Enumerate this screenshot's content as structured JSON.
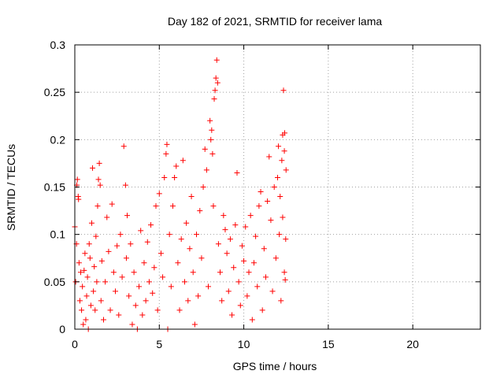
{
  "chart_data": {
    "type": "scatter",
    "title": "Day 182 of 2021, SRMTID for receiver lama",
    "xlabel": "GPS time / hours",
    "ylabel": "SRMTID / TECUs",
    "xlim": [
      0,
      24
    ],
    "ylim": [
      0,
      0.3
    ],
    "xticks": [
      0,
      5,
      10,
      15,
      20
    ],
    "xtick_labels": [
      "0",
      "5",
      "10",
      "15",
      "20"
    ],
    "yticks": [
      0,
      0.05,
      0.1,
      0.15,
      0.2,
      0.25,
      0.3
    ],
    "ytick_labels": [
      "0",
      "0.05",
      "0.1",
      "0.15",
      "0.2",
      "0.25",
      "0.3"
    ],
    "grid": true,
    "marker": "plus",
    "series": [
      {
        "name": "SRMTID",
        "color": "#ff0000",
        "points": [
          [
            0.0,
            0.108
          ],
          [
            0.05,
            0.05
          ],
          [
            0.1,
            0.09
          ],
          [
            0.12,
            0.152
          ],
          [
            0.15,
            0.158
          ],
          [
            0.2,
            0.14
          ],
          [
            0.22,
            0.137
          ],
          [
            0.25,
            0.07
          ],
          [
            0.3,
            0.03
          ],
          [
            0.35,
            0.06
          ],
          [
            0.4,
            0.02
          ],
          [
            0.45,
            0.045
          ],
          [
            0.5,
            0.005
          ],
          [
            0.55,
            0.062
          ],
          [
            0.6,
            0.08
          ],
          [
            0.65,
            0.01
          ],
          [
            0.7,
            0.035
          ],
          [
            0.75,
            0.055
          ],
          [
            0.8,
            0.0
          ],
          [
            0.85,
            0.09
          ],
          [
            0.9,
            0.075
          ],
          [
            0.95,
            0.025
          ],
          [
            1.0,
            0.112
          ],
          [
            1.05,
            0.17
          ],
          [
            1.1,
            0.04
          ],
          [
            1.15,
            0.066
          ],
          [
            1.2,
            0.02
          ],
          [
            1.25,
            0.098
          ],
          [
            1.3,
            0.05
          ],
          [
            1.35,
            0.13
          ],
          [
            1.4,
            0.158
          ],
          [
            1.45,
            0.175
          ],
          [
            1.5,
            0.152
          ],
          [
            1.55,
            0.03
          ],
          [
            1.6,
            0.072
          ],
          [
            1.7,
            0.01
          ],
          [
            1.8,
            0.05
          ],
          [
            1.9,
            0.118
          ],
          [
            2.0,
            0.082
          ],
          [
            2.1,
            0.02
          ],
          [
            2.2,
            0.132
          ],
          [
            2.3,
            0.06
          ],
          [
            2.4,
            0.04
          ],
          [
            2.5,
            0.088
          ],
          [
            2.6,
            0.015
          ],
          [
            2.7,
            0.1
          ],
          [
            2.8,
            0.055
          ],
          [
            2.9,
            0.193
          ],
          [
            3.0,
            0.152
          ],
          [
            3.05,
            0.075
          ],
          [
            3.1,
            0.12
          ],
          [
            3.2,
            0.035
          ],
          [
            3.3,
            0.09
          ],
          [
            3.4,
            0.005
          ],
          [
            3.5,
            0.06
          ],
          [
            3.6,
            0.025
          ],
          [
            3.7,
            0.0
          ],
          [
            3.8,
            0.045
          ],
          [
            3.9,
            0.104
          ],
          [
            4.0,
            0.015
          ],
          [
            4.1,
            0.07
          ],
          [
            4.2,
            0.03
          ],
          [
            4.3,
            0.092
          ],
          [
            4.4,
            0.05
          ],
          [
            4.5,
            0.11
          ],
          [
            4.6,
            0.038
          ],
          [
            4.7,
            0.065
          ],
          [
            4.8,
            0.13
          ],
          [
            4.9,
            0.02
          ],
          [
            5.0,
            0.143
          ],
          [
            5.1,
            0.08
          ],
          [
            5.2,
            0.055
          ],
          [
            5.3,
            0.16
          ],
          [
            5.4,
            0.185
          ],
          [
            5.45,
            0.195
          ],
          [
            5.5,
            0.0
          ],
          [
            5.6,
            0.1
          ],
          [
            5.7,
            0.045
          ],
          [
            5.8,
            0.13
          ],
          [
            5.9,
            0.16
          ],
          [
            6.0,
            0.172
          ],
          [
            6.1,
            0.07
          ],
          [
            6.2,
            0.02
          ],
          [
            6.3,
            0.095
          ],
          [
            6.4,
            0.178
          ],
          [
            6.5,
            0.05
          ],
          [
            6.6,
            0.112
          ],
          [
            6.7,
            0.03
          ],
          [
            6.8,
            0.085
          ],
          [
            6.9,
            0.14
          ],
          [
            7.0,
            0.06
          ],
          [
            7.1,
            0.005
          ],
          [
            7.2,
            0.1
          ],
          [
            7.3,
            0.035
          ],
          [
            7.4,
            0.125
          ],
          [
            7.5,
            0.075
          ],
          [
            7.6,
            0.15
          ],
          [
            7.7,
            0.19
          ],
          [
            7.8,
            0.168
          ],
          [
            7.9,
            0.045
          ],
          [
            8.0,
            0.22
          ],
          [
            8.05,
            0.2
          ],
          [
            8.1,
            0.21
          ],
          [
            8.15,
            0.185
          ],
          [
            8.2,
            0.13
          ],
          [
            8.25,
            0.243
          ],
          [
            8.3,
            0.252
          ],
          [
            8.35,
            0.265
          ],
          [
            8.4,
            0.284
          ],
          [
            8.45,
            0.26
          ],
          [
            8.5,
            0.09
          ],
          [
            8.6,
            0.06
          ],
          [
            8.7,
            0.03
          ],
          [
            8.8,
            0.12
          ],
          [
            8.9,
            0.105
          ],
          [
            9.0,
            0.08
          ],
          [
            9.1,
            0.04
          ],
          [
            9.2,
            0.095
          ],
          [
            9.3,
            0.015
          ],
          [
            9.4,
            0.065
          ],
          [
            9.5,
            0.11
          ],
          [
            9.6,
            0.165
          ],
          [
            9.7,
            0.05
          ],
          [
            9.8,
            0.025
          ],
          [
            9.9,
            0.088
          ],
          [
            10.0,
            0.072
          ],
          [
            10.1,
            0.108
          ],
          [
            10.2,
            0.035
          ],
          [
            10.3,
            0.06
          ],
          [
            10.4,
            0.12
          ],
          [
            10.5,
            0.01
          ],
          [
            10.6,
            0.07
          ],
          [
            10.7,
            0.098
          ],
          [
            10.8,
            0.045
          ],
          [
            10.9,
            0.13
          ],
          [
            11.0,
            0.145
          ],
          [
            11.1,
            0.02
          ],
          [
            11.2,
            0.085
          ],
          [
            11.3,
            0.055
          ],
          [
            11.4,
            0.135
          ],
          [
            11.5,
            0.182
          ],
          [
            11.6,
            0.115
          ],
          [
            11.7,
            0.04
          ],
          [
            11.8,
            0.15
          ],
          [
            11.9,
            0.075
          ],
          [
            12.0,
            0.16
          ],
          [
            12.05,
            0.193
          ],
          [
            12.1,
            0.1
          ],
          [
            12.15,
            0.14
          ],
          [
            12.2,
            0.03
          ],
          [
            12.25,
            0.178
          ],
          [
            12.3,
            0.205
          ],
          [
            12.35,
            0.252
          ],
          [
            12.4,
            0.188
          ],
          [
            12.42,
            0.207
          ],
          [
            12.45,
            0.052
          ],
          [
            12.48,
            0.095
          ],
          [
            12.5,
            0.168
          ],
          [
            12.3,
            0.118
          ],
          [
            12.4,
            0.06
          ]
        ]
      }
    ]
  }
}
